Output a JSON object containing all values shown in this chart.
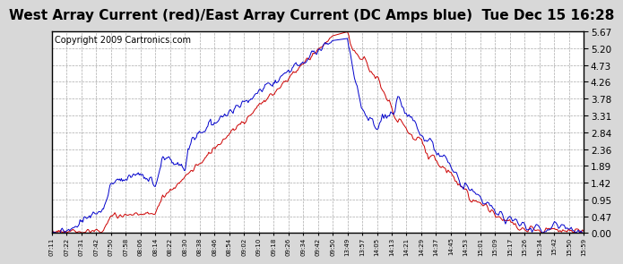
{
  "title": "West Array Current (red)/East Array Current (DC Amps blue)  Tue Dec 15 16:28",
  "copyright": "Copyright 2009 Cartronics.com",
  "yticks": [
    0.0,
    0.47,
    0.95,
    1.42,
    1.89,
    2.36,
    2.84,
    3.31,
    3.78,
    4.26,
    4.73,
    5.2,
    5.67
  ],
  "ymin": 0.0,
  "ymax": 5.67,
  "xtick_labels": [
    "07:11",
    "07:22",
    "07:31",
    "07:42",
    "07:50",
    "07:58",
    "08:06",
    "08:14",
    "08:22",
    "08:30",
    "08:38",
    "08:46",
    "08:54",
    "09:02",
    "09:10",
    "09:18",
    "09:26",
    "09:34",
    "09:42",
    "09:50",
    "13:49",
    "13:57",
    "14:05",
    "14:13",
    "14:21",
    "14:29",
    "14:37",
    "14:45",
    "14:53",
    "15:01",
    "15:09",
    "15:17",
    "15:26",
    "15:34",
    "15:42",
    "15:50",
    "15:59"
  ],
  "background_color": "#d8d8d8",
  "plot_bg_color": "#ffffff",
  "grid_color": "#a0a0a0",
  "red_color": "#cc0000",
  "blue_color": "#0000cc",
  "title_fontsize": 11,
  "copyright_fontsize": 7
}
